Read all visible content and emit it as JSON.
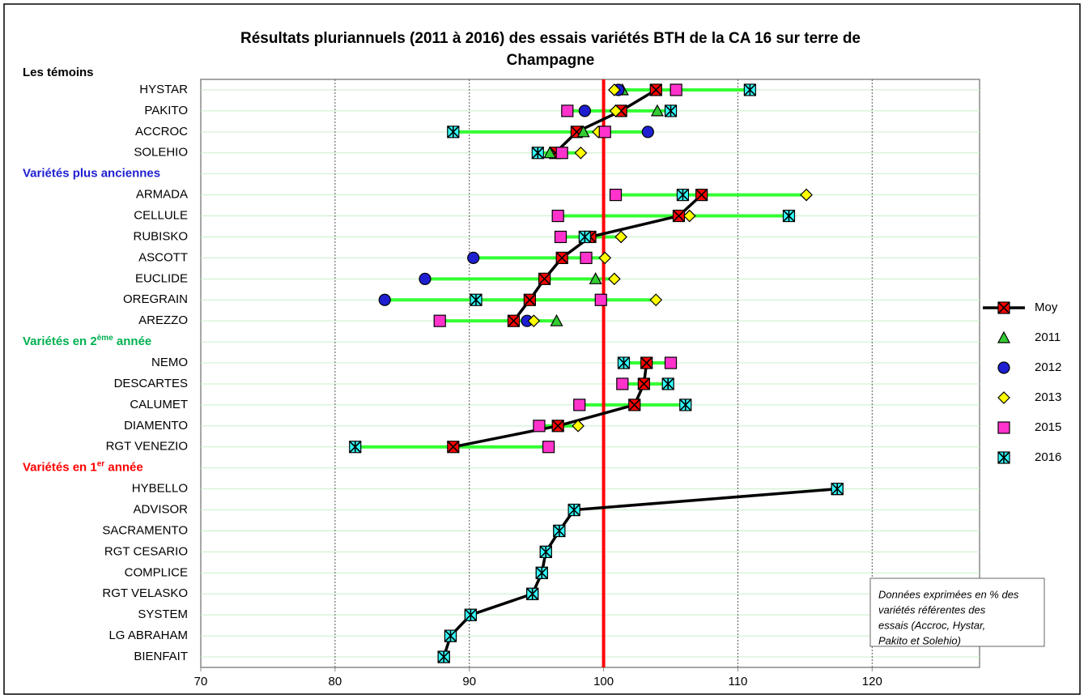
{
  "chart_data": {
    "type": "dot-range",
    "title": [
      "Résultats pluriannuels (2011 à 2016) des essais variétés BTH de la CA 16 sur terre de",
      "Champagne"
    ],
    "groups": [
      {
        "text": "Les témoins",
        "color": "#000000"
      },
      {
        "text": "Variétés plus anciennes",
        "color": "#1f1fd1"
      },
      {
        "text": "Variétés en 2",
        "sup": "ème",
        "rest": " année",
        "color": "#00b050"
      },
      {
        "text": "Variétés en 1",
        "sup": "er",
        "rest": " année",
        "color": "#ff0000"
      }
    ],
    "categories": [
      "HYSTAR",
      "PAKITO",
      "ACCROC",
      "SOLEHIO",
      null,
      "ARMADA",
      "CELLULE",
      "RUBISKO",
      "ASCOTT",
      "EUCLIDE",
      "OREGRAIN",
      "AREZZO",
      null,
      "NEMO",
      "DESCARTES",
      "CALUMET",
      "DIAMENTO",
      "RGT VENEZIO",
      null,
      "HYBELLO",
      "ADVISOR",
      "SACRAMENTO",
      "RGT CESARIO",
      "COMPLICE",
      "RGT VELASKO",
      "SYSTEM",
      "LG ABRAHAM",
      "BIENFAIT"
    ],
    "series": [
      {
        "name": "Moy",
        "color": "#ff0000",
        "marker": "x-square",
        "line": true,
        "values": [
          103.9,
          101.3,
          98.0,
          96.4,
          null,
          107.3,
          105.6,
          99.0,
          96.9,
          95.6,
          94.5,
          93.3,
          null,
          103.2,
          103.0,
          102.3,
          96.6,
          88.8,
          null,
          117.4,
          97.8,
          96.7,
          95.7,
          95.4,
          94.7,
          90.1,
          88.6,
          88.1
        ]
      },
      {
        "name": "2011",
        "color": "#33cc33",
        "marker": "triangle",
        "values": [
          101.4,
          104.0,
          98.5,
          96.0,
          null,
          null,
          null,
          null,
          null,
          99.4,
          null,
          96.5,
          null,
          null,
          null,
          null,
          null,
          null,
          null,
          null,
          null,
          null,
          null,
          null,
          null,
          null,
          null,
          null
        ]
      },
      {
        "name": "2012",
        "color": "#1f1fd1",
        "marker": "circle",
        "values": [
          101.1,
          98.6,
          103.3,
          null,
          null,
          null,
          null,
          null,
          90.3,
          86.7,
          83.7,
          94.3,
          null,
          null,
          null,
          null,
          null,
          null,
          null,
          null,
          null,
          null,
          null,
          null,
          null,
          null,
          null,
          null
        ]
      },
      {
        "name": "2013",
        "color": "#ffff00",
        "marker": "diamond",
        "values": [
          100.8,
          100.9,
          99.6,
          98.3,
          null,
          115.1,
          106.4,
          101.3,
          100.1,
          100.8,
          103.9,
          94.8,
          null,
          null,
          null,
          null,
          98.1,
          null,
          null,
          null,
          null,
          null,
          null,
          null,
          null,
          null,
          null,
          null
        ]
      },
      {
        "name": "2015",
        "color": "#ff33cc",
        "marker": "square",
        "values": [
          105.4,
          97.3,
          100.1,
          96.9,
          null,
          100.9,
          96.6,
          96.8,
          98.7,
          null,
          99.8,
          87.8,
          null,
          105.0,
          101.4,
          98.2,
          95.2,
          95.9,
          null,
          null,
          null,
          null,
          null,
          null,
          null,
          null,
          null,
          null
        ]
      },
      {
        "name": "2016",
        "color": "#33ffff",
        "marker": "star-square",
        "values": [
          110.9,
          105.0,
          88.8,
          95.1,
          null,
          105.9,
          113.8,
          98.6,
          null,
          null,
          90.5,
          null,
          null,
          101.5,
          104.8,
          106.1,
          null,
          81.5,
          null,
          117.4,
          97.8,
          96.7,
          95.7,
          95.4,
          94.7,
          90.1,
          88.6,
          88.1
        ]
      }
    ],
    "range_color": "#33ff33",
    "xlim": [
      70,
      128
    ],
    "xticks": [
      70,
      80,
      90,
      100,
      110,
      120
    ],
    "grid": true,
    "reference_line": {
      "value": 100,
      "color": "#ff0000"
    },
    "legend": "right",
    "note": [
      "Données exprimées en % des",
      "variétés référentes des",
      "essais (Accroc, Hystar,",
      "Pakito et Solehio)"
    ]
  }
}
